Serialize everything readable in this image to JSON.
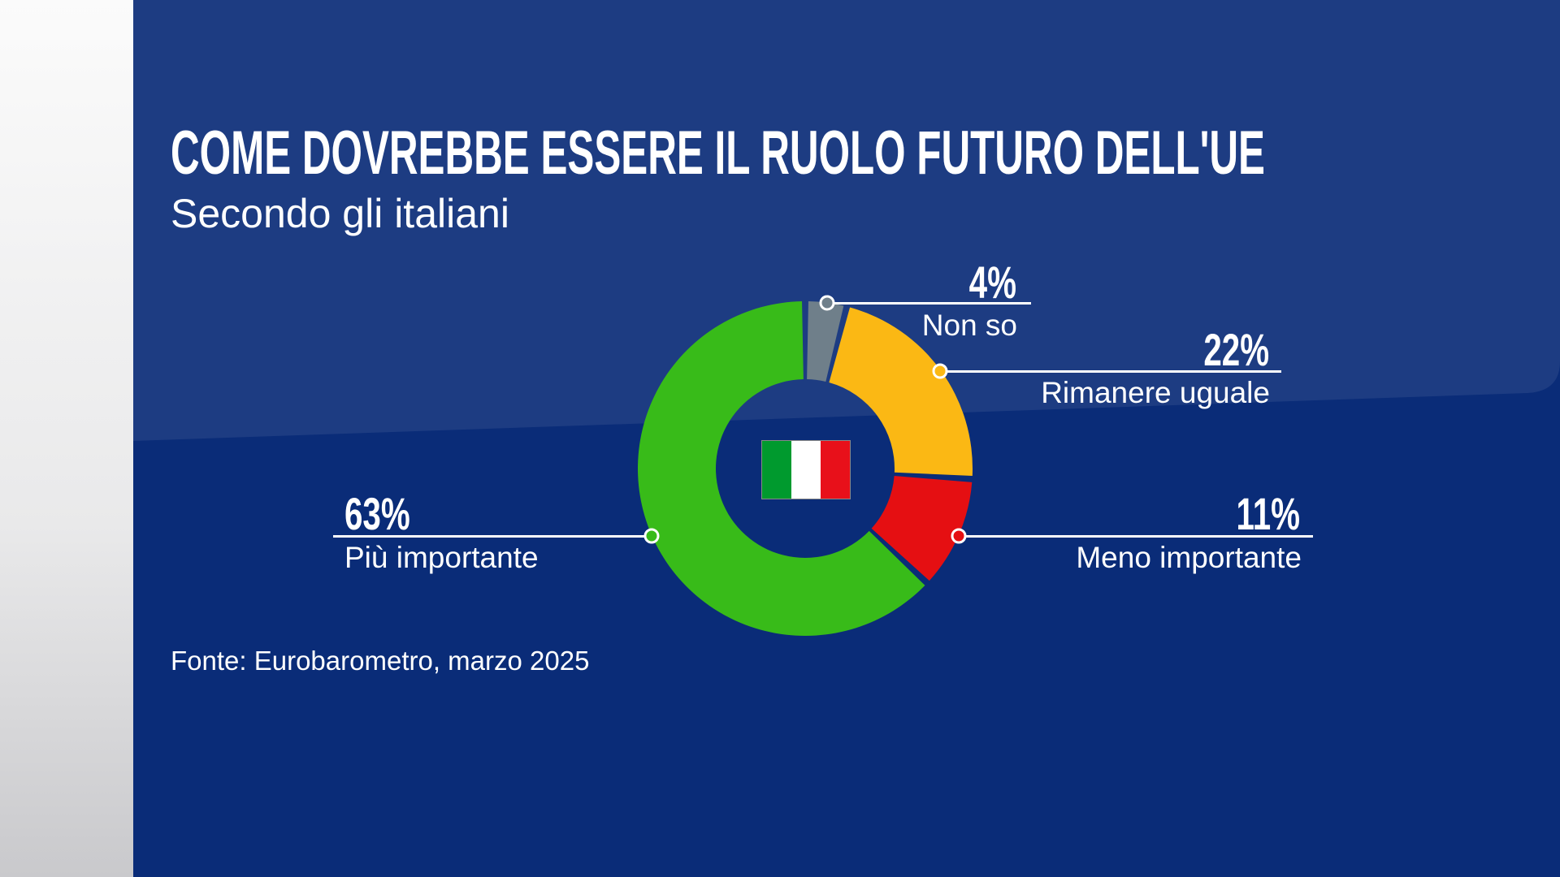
{
  "title": "COME DOVREBBE ESSERE IL RUOLO FUTURO DELL'UE",
  "subtitle": "Secondo gli italiani",
  "source": "Fonte: Eurobarometro, marzo 2025",
  "center_icon": "italy-flag",
  "colors": {
    "background": "#0a2c78",
    "flag": [
      "#009a2e",
      "#ffffff",
      "#e8101a"
    ]
  },
  "chart_data": {
    "type": "pie",
    "variant": "donut",
    "title": "COME DOVREBBE ESSERE IL RUOLO FUTURO DELL'UE",
    "subtitle": "Secondo gli italiani",
    "slices": [
      {
        "label": "Non so",
        "value": 4,
        "value_label": "4%",
        "color": "#6f7f8a"
      },
      {
        "label": "Rimanere uguale",
        "value": 22,
        "value_label": "22%",
        "color": "#fbb814"
      },
      {
        "label": "Meno importante",
        "value": 11,
        "value_label": "11%",
        "color": "#e50f12"
      },
      {
        "label": "Più importante",
        "value": 63,
        "value_label": "63%",
        "color": "#38bb19"
      }
    ],
    "legend": "none"
  }
}
